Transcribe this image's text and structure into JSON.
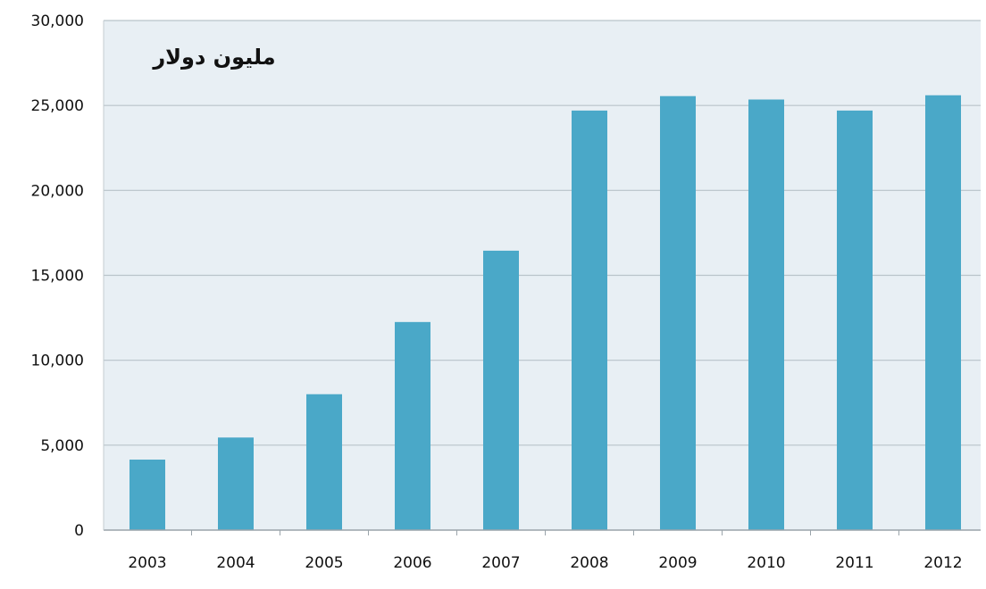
{
  "chart_data": {
    "type": "bar",
    "title": "",
    "unit_label": "مليون دولار",
    "xlabel": "",
    "ylabel": "",
    "categories": [
      "2003",
      "2004",
      "2005",
      "2006",
      "2007",
      "2008",
      "2009",
      "2010",
      "2011",
      "2012"
    ],
    "values": [
      4150,
      5450,
      8000,
      12250,
      16450,
      24700,
      25550,
      25350,
      24700,
      25600
    ],
    "ylim": [
      0,
      30000
    ],
    "yticks": [
      "0",
      "5,000",
      "10,000",
      "15,000",
      "20,000",
      "25,000",
      "30,000"
    ],
    "grid": true,
    "legend": "none",
    "colors": {
      "bar": "#4aa8c8",
      "plot_background": "#e8eff4",
      "gridline": "#b9c3c9"
    }
  }
}
